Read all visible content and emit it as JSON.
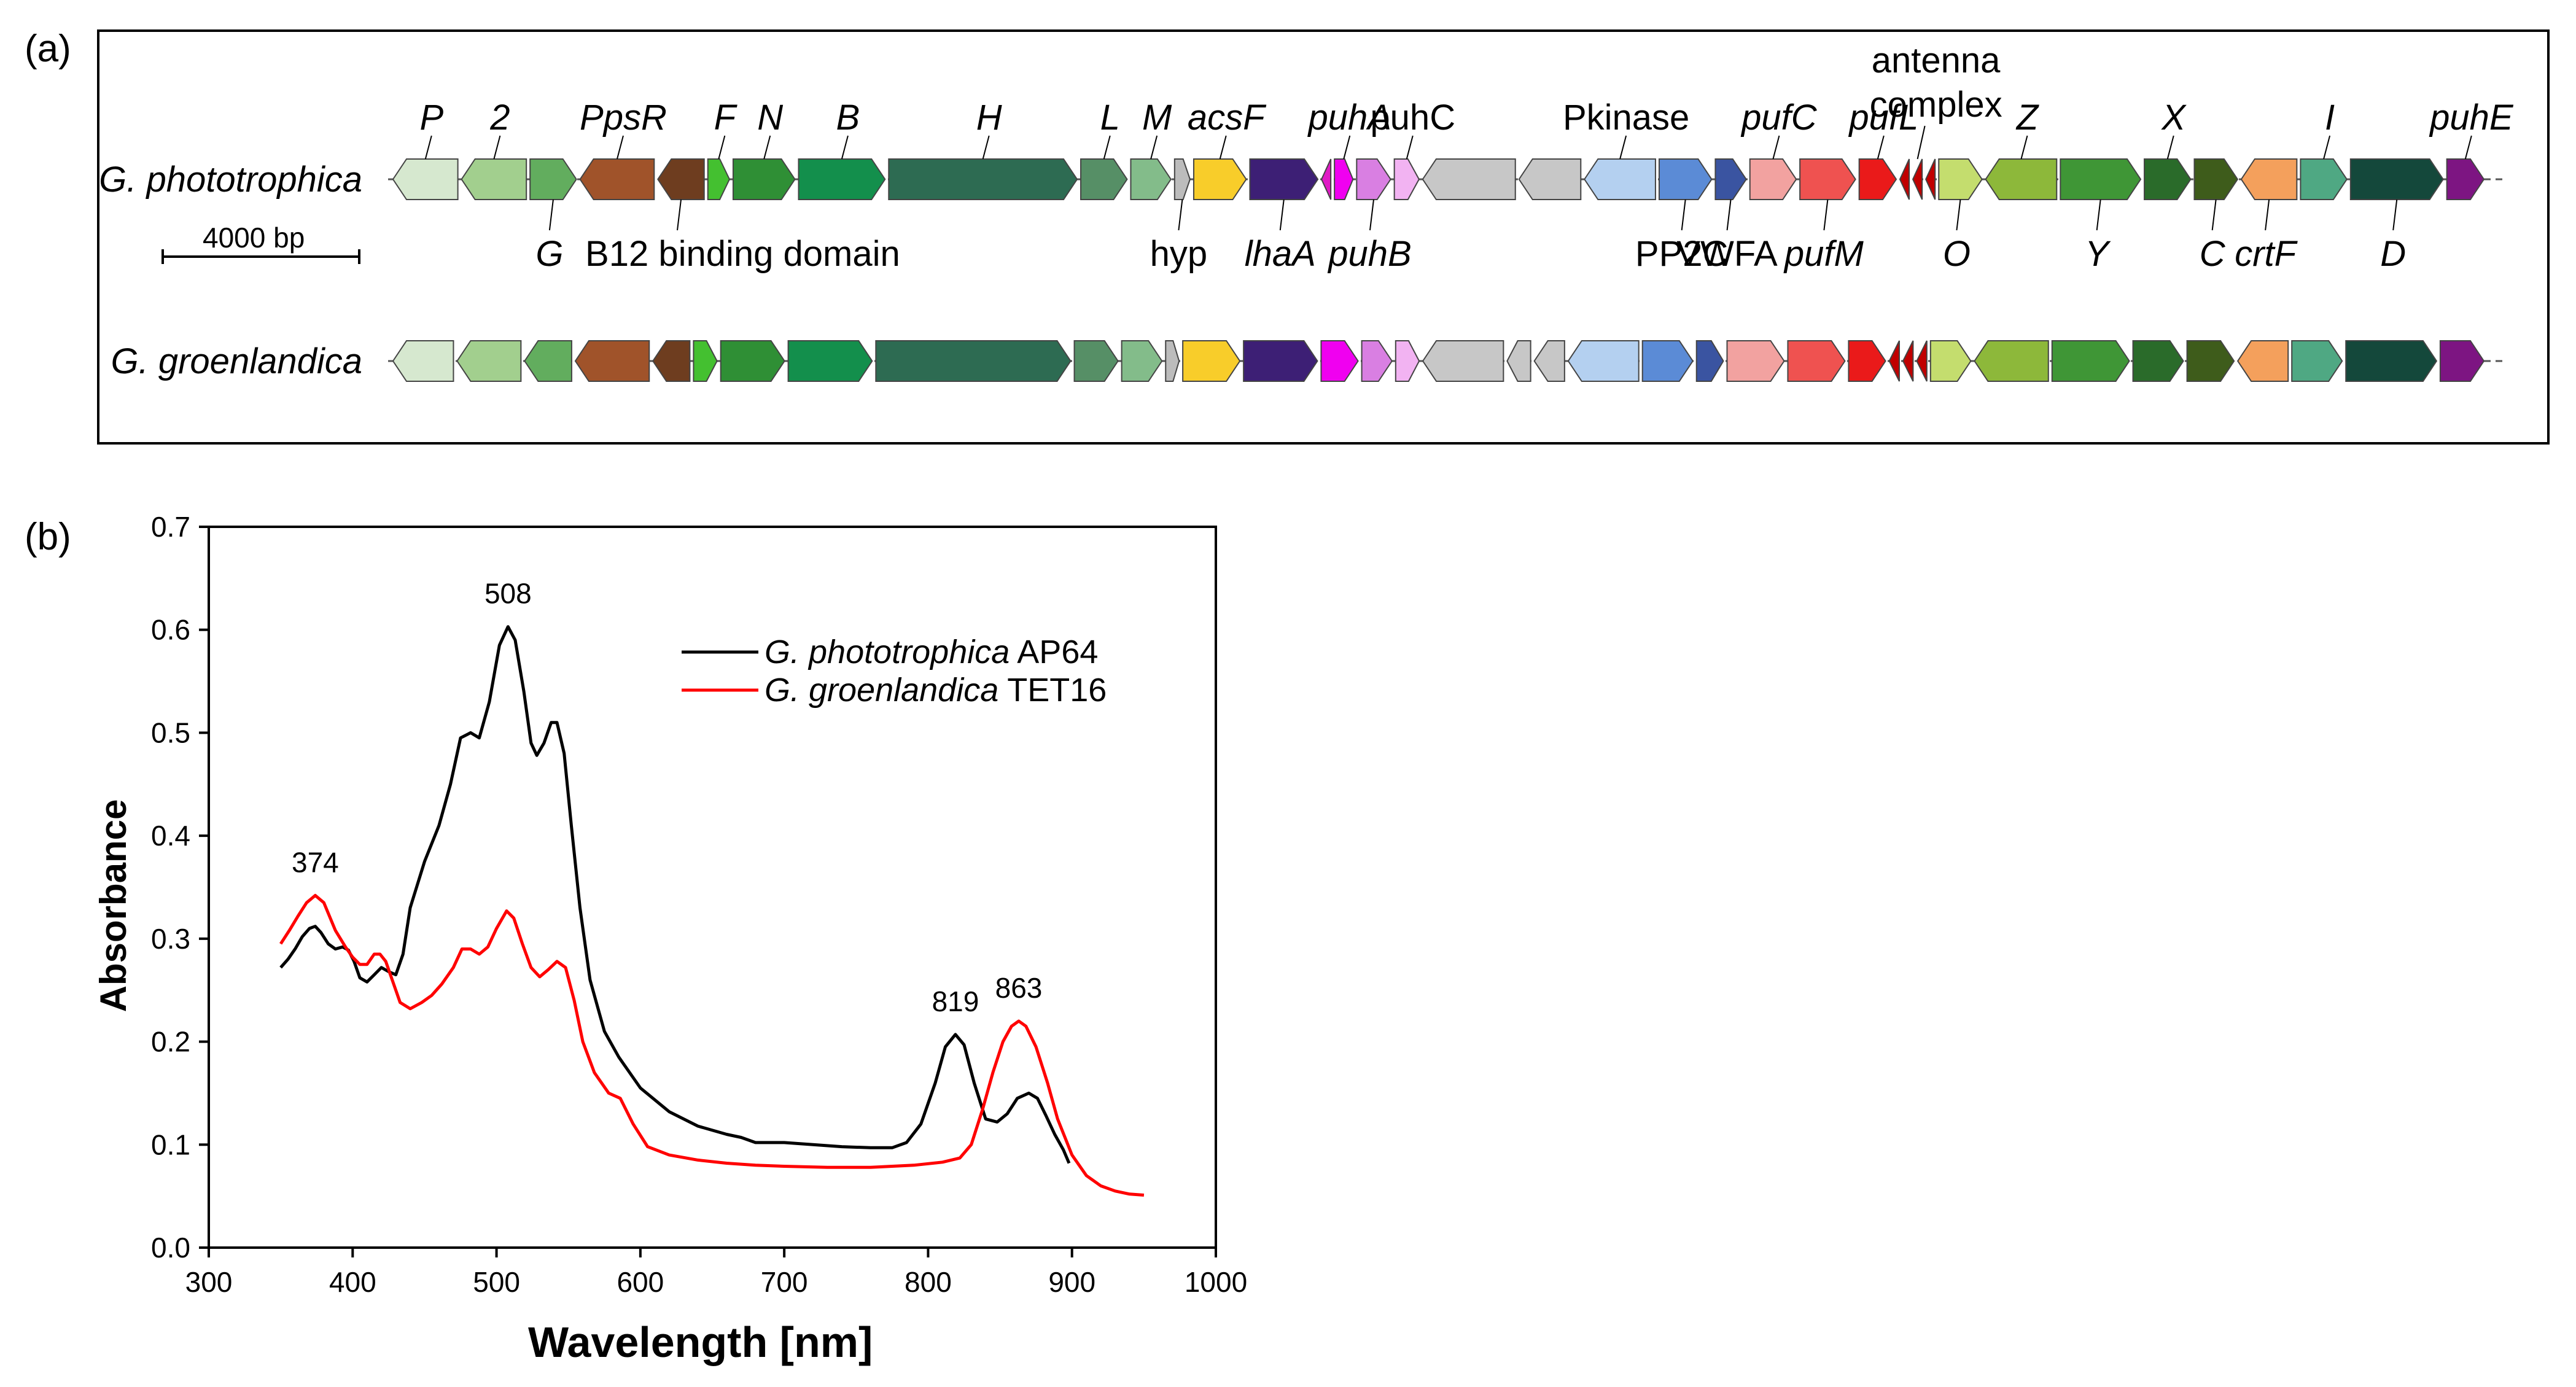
{
  "panel_a": {
    "label": "(a)",
    "scale_bar_label": "4000 bp",
    "rows": [
      {
        "species": "G. phototrophica",
        "genes": [
          {
            "w": 42,
            "dir": "l",
            "c": "#d6e8cf"
          },
          {
            "w": 42,
            "dir": "l",
            "c": "#a2cf8e"
          },
          {
            "w": 30,
            "dir": "r",
            "c": "#62ad5e"
          },
          {
            "w": 48,
            "dir": "l",
            "c": "#a0532a"
          },
          {
            "w": 30,
            "dir": "l",
            "c": "#6e3d1f"
          },
          {
            "w": 14,
            "dir": "r",
            "c": "#44c030"
          },
          {
            "w": 40,
            "dir": "r",
            "c": "#2f8f35"
          },
          {
            "w": 56,
            "dir": "r",
            "c": "#138f4c"
          },
          {
            "w": 122,
            "dir": "r",
            "c": "#2d6b52"
          },
          {
            "w": 30,
            "dir": "r",
            "c": "#568f66"
          },
          {
            "w": 26,
            "dir": "r",
            "c": "#83bc8a"
          },
          {
            "w": 10,
            "dir": "r",
            "c": "#bcbcbc"
          },
          {
            "w": 34,
            "dir": "r",
            "c": "#f8cd2a"
          },
          {
            "w": 44,
            "dir": "r",
            "c": "#3d1f75"
          },
          {
            "w": 6,
            "dir": "l",
            "c": "#e01ac5"
          },
          {
            "w": 12,
            "dir": "r",
            "c": "#f000f0"
          },
          {
            "w": 22,
            "dir": "r",
            "c": "#d97fe2"
          },
          {
            "w": 16,
            "dir": "r",
            "c": "#f2b3f2"
          },
          {
            "w": 60,
            "dir": "l",
            "c": "#c7c7c7"
          },
          {
            "w": 40,
            "dir": "l",
            "c": "#c7c7c7"
          },
          {
            "w": 46,
            "dir": "l",
            "c": "#b4d0f0"
          },
          {
            "w": 34,
            "dir": "r",
            "c": "#5b8bd6"
          },
          {
            "w": 20,
            "dir": "r",
            "c": "#3a54a1"
          },
          {
            "w": 30,
            "dir": "r",
            "c": "#f2a2a0"
          },
          {
            "w": 36,
            "dir": "r",
            "c": "#ef5250"
          },
          {
            "w": 24,
            "dir": "r",
            "c": "#ea1a1a"
          },
          {
            "w": 6,
            "dir": "l",
            "c": "#c00000"
          },
          {
            "w": 6,
            "dir": "l",
            "c": "#c00000"
          },
          {
            "w": 6,
            "dir": "l",
            "c": "#c00000"
          },
          {
            "w": 28,
            "dir": "r",
            "c": "#c4dd6e"
          },
          {
            "w": 46,
            "dir": "l",
            "c": "#8db83a"
          },
          {
            "w": 52,
            "dir": "r",
            "c": "#3f9636"
          },
          {
            "w": 30,
            "dir": "r",
            "c": "#2a6b2a"
          },
          {
            "w": 28,
            "dir": "r",
            "c": "#3e5c1b"
          },
          {
            "w": 36,
            "dir": "l",
            "c": "#f4a05c"
          },
          {
            "w": 30,
            "dir": "r",
            "c": "#4fa883"
          },
          {
            "w": 60,
            "dir": "r",
            "c": "#14483b"
          },
          {
            "w": 24,
            "dir": "r",
            "c": "#7d1582"
          }
        ]
      },
      {
        "species": "G. groenlandica",
        "genes": [
          {
            "w": 36,
            "dir": "l",
            "c": "#d6e8cf"
          },
          {
            "w": 38,
            "dir": "l",
            "c": "#a2cf8e"
          },
          {
            "w": 28,
            "dir": "l",
            "c": "#62ad5e"
          },
          {
            "w": 44,
            "dir": "l",
            "c": "#a0532a"
          },
          {
            "w": 22,
            "dir": "l",
            "c": "#6e3d1f"
          },
          {
            "w": 14,
            "dir": "r",
            "c": "#44c030"
          },
          {
            "w": 38,
            "dir": "r",
            "c": "#2f8f35"
          },
          {
            "w": 50,
            "dir": "r",
            "c": "#138f4c"
          },
          {
            "w": 116,
            "dir": "r",
            "c": "#2d6b52"
          },
          {
            "w": 26,
            "dir": "r",
            "c": "#568f66"
          },
          {
            "w": 24,
            "dir": "r",
            "c": "#83bc8a"
          },
          {
            "w": 8,
            "dir": "r",
            "c": "#bcbcbc"
          },
          {
            "w": 34,
            "dir": "r",
            "c": "#f8cd2a"
          },
          {
            "w": 44,
            "dir": "r",
            "c": "#3d1f75"
          },
          {
            "w": 22,
            "dir": "r",
            "c": "#f000f0"
          },
          {
            "w": 18,
            "dir": "r",
            "c": "#d97fe2"
          },
          {
            "w": 14,
            "dir": "r",
            "c": "#f2b3f2"
          },
          {
            "w": 48,
            "dir": "l",
            "c": "#c7c7c7"
          },
          {
            "w": 14,
            "dir": "l",
            "c": "#c7c7c7"
          },
          {
            "w": 18,
            "dir": "l",
            "c": "#c7c7c7"
          },
          {
            "w": 42,
            "dir": "l",
            "c": "#b4d0f0"
          },
          {
            "w": 30,
            "dir": "r",
            "c": "#5b8bd6"
          },
          {
            "w": 16,
            "dir": "r",
            "c": "#3a54a1"
          },
          {
            "w": 34,
            "dir": "r",
            "c": "#f2a2a0"
          },
          {
            "w": 34,
            "dir": "r",
            "c": "#ef5250"
          },
          {
            "w": 22,
            "dir": "r",
            "c": "#ea1a1a"
          },
          {
            "w": 6,
            "dir": "l",
            "c": "#c00000"
          },
          {
            "w": 6,
            "dir": "l",
            "c": "#c00000"
          },
          {
            "w": 6,
            "dir": "l",
            "c": "#c00000"
          },
          {
            "w": 24,
            "dir": "r",
            "c": "#c4dd6e"
          },
          {
            "w": 44,
            "dir": "l",
            "c": "#8db83a"
          },
          {
            "w": 46,
            "dir": "r",
            "c": "#3f9636"
          },
          {
            "w": 30,
            "dir": "r",
            "c": "#2a6b2a"
          },
          {
            "w": 28,
            "dir": "r",
            "c": "#3e5c1b"
          },
          {
            "w": 30,
            "dir": "l",
            "c": "#f4a05c"
          },
          {
            "w": 30,
            "dir": "r",
            "c": "#4fa883"
          },
          {
            "w": 54,
            "dir": "r",
            "c": "#14483b"
          },
          {
            "w": 26,
            "dir": "r",
            "c": "#7d1582"
          }
        ]
      }
    ],
    "top_gene_labels": [
      {
        "text": "P",
        "italic": true,
        "gene": 0
      },
      {
        "text": "2",
        "italic": true,
        "gene": 1
      },
      {
        "text": "PpsR",
        "italic": true,
        "gene": 3
      },
      {
        "text": "F",
        "italic": true,
        "gene": 5
      },
      {
        "text": "N",
        "italic": true,
        "gene": 6
      },
      {
        "text": "B",
        "italic": true,
        "gene": 7
      },
      {
        "text": "H",
        "italic": true,
        "gene": 8
      },
      {
        "text": "L",
        "italic": true,
        "gene": 9
      },
      {
        "text": "M",
        "italic": true,
        "gene": 10
      },
      {
        "text": "acsF",
        "italic": true,
        "gene": 12
      },
      {
        "text": "puhA",
        "italic": true,
        "gene": 15
      },
      {
        "text": "puhC",
        "italic": false,
        "gene": 17
      },
      {
        "text": "Pkinase",
        "italic": false,
        "gene": 20
      },
      {
        "text": "pufC",
        "italic": true,
        "gene": 23
      },
      {
        "text": "pufL",
        "italic": true,
        "gene": 25
      },
      {
        "text": "Z",
        "italic": true,
        "gene": 30
      },
      {
        "text": "X",
        "italic": true,
        "gene": 32
      },
      {
        "text": "I",
        "italic": true,
        "gene": 35
      },
      {
        "text": "puhE",
        "italic": true,
        "gene": 37
      }
    ],
    "antenna_label": [
      "antenna",
      "complex"
    ],
    "bottom_gene_labels": [
      {
        "text": "G",
        "italic": true,
        "gene": 2
      },
      {
        "text": "B12 binding domain",
        "italic": false,
        "gene": 4
      },
      {
        "text": "hyp",
        "italic": false,
        "gene": 11
      },
      {
        "text": "lhaA",
        "italic": true,
        "gene": 13
      },
      {
        "text": "puhB",
        "italic": true,
        "gene": 16
      },
      {
        "text": "PP2C",
        "italic": false,
        "gene": 21
      },
      {
        "text": "VWFA",
        "italic": false,
        "gene": 22
      },
      {
        "text": "pufM",
        "italic": true,
        "gene": 24
      },
      {
        "text": "O",
        "italic": true,
        "gene": 29
      },
      {
        "text": "Y",
        "italic": true,
        "gene": 31
      },
      {
        "text": "C",
        "italic": true,
        "gene": 33
      },
      {
        "text": "crtF",
        "italic": true,
        "gene": 34
      },
      {
        "text": "D",
        "italic": true,
        "gene": 36
      }
    ]
  },
  "chart_data": {
    "type": "line",
    "panel_label": "(b)",
    "xlabel": "Wavelength [nm]",
    "ylabel": "Absorbance",
    "xlim": [
      300,
      1000
    ],
    "ylim": [
      0.0,
      0.7
    ],
    "xticks": [
      300,
      400,
      500,
      600,
      700,
      800,
      900,
      1000
    ],
    "yticks": [
      0.0,
      0.1,
      0.2,
      0.3,
      0.4,
      0.5,
      0.6,
      0.7
    ],
    "ytick_labels": [
      "0.0",
      "0.1",
      "0.2",
      "0.3",
      "0.4",
      "0.5",
      "0.6",
      "0.7"
    ],
    "legend_position": "top-center",
    "series": [
      {
        "name_italic": "G. phototrophica",
        "name_suffix": " AP64",
        "color": "#000000",
        "points": [
          [
            350,
            0.272
          ],
          [
            355,
            0.28
          ],
          [
            360,
            0.29
          ],
          [
            365,
            0.302
          ],
          [
            370,
            0.31
          ],
          [
            374,
            0.312
          ],
          [
            378,
            0.306
          ],
          [
            383,
            0.295
          ],
          [
            388,
            0.29
          ],
          [
            393,
            0.292
          ],
          [
            397,
            0.289
          ],
          [
            401,
            0.278
          ],
          [
            405,
            0.262
          ],
          [
            410,
            0.258
          ],
          [
            415,
            0.265
          ],
          [
            420,
            0.272
          ],
          [
            425,
            0.268
          ],
          [
            430,
            0.265
          ],
          [
            435,
            0.285
          ],
          [
            440,
            0.33
          ],
          [
            450,
            0.375
          ],
          [
            460,
            0.41
          ],
          [
            468,
            0.45
          ],
          [
            475,
            0.495
          ],
          [
            482,
            0.5
          ],
          [
            488,
            0.495
          ],
          [
            495,
            0.53
          ],
          [
            502,
            0.585
          ],
          [
            508,
            0.603
          ],
          [
            513,
            0.59
          ],
          [
            519,
            0.54
          ],
          [
            524,
            0.49
          ],
          [
            528,
            0.478
          ],
          [
            533,
            0.49
          ],
          [
            538,
            0.51
          ],
          [
            542,
            0.51
          ],
          [
            547,
            0.48
          ],
          [
            552,
            0.41
          ],
          [
            558,
            0.33
          ],
          [
            565,
            0.26
          ],
          [
            575,
            0.21
          ],
          [
            585,
            0.185
          ],
          [
            600,
            0.155
          ],
          [
            620,
            0.132
          ],
          [
            640,
            0.118
          ],
          [
            660,
            0.11
          ],
          [
            670,
            0.107
          ],
          [
            680,
            0.102
          ],
          [
            700,
            0.102
          ],
          [
            720,
            0.1
          ],
          [
            740,
            0.098
          ],
          [
            760,
            0.097
          ],
          [
            775,
            0.097
          ],
          [
            785,
            0.102
          ],
          [
            795,
            0.12
          ],
          [
            805,
            0.16
          ],
          [
            812,
            0.195
          ],
          [
            819,
            0.207
          ],
          [
            825,
            0.197
          ],
          [
            832,
            0.16
          ],
          [
            840,
            0.125
          ],
          [
            848,
            0.122
          ],
          [
            855,
            0.13
          ],
          [
            862,
            0.145
          ],
          [
            870,
            0.15
          ],
          [
            876,
            0.145
          ],
          [
            882,
            0.128
          ],
          [
            888,
            0.11
          ],
          [
            894,
            0.095
          ],
          [
            898,
            0.082
          ]
        ]
      },
      {
        "name_italic": "G. groenlandica",
        "name_suffix": " TET16",
        "color": "#ff0000",
        "points": [
          [
            350,
            0.295
          ],
          [
            356,
            0.308
          ],
          [
            362,
            0.322
          ],
          [
            368,
            0.335
          ],
          [
            374,
            0.342
          ],
          [
            380,
            0.335
          ],
          [
            388,
            0.308
          ],
          [
            395,
            0.292
          ],
          [
            400,
            0.282
          ],
          [
            405,
            0.275
          ],
          [
            410,
            0.275
          ],
          [
            415,
            0.285
          ],
          [
            419,
            0.285
          ],
          [
            423,
            0.278
          ],
          [
            428,
            0.258
          ],
          [
            433,
            0.238
          ],
          [
            440,
            0.232
          ],
          [
            448,
            0.238
          ],
          [
            455,
            0.245
          ],
          [
            462,
            0.256
          ],
          [
            470,
            0.272
          ],
          [
            476,
            0.29
          ],
          [
            482,
            0.29
          ],
          [
            488,
            0.285
          ],
          [
            494,
            0.292
          ],
          [
            500,
            0.31
          ],
          [
            507,
            0.327
          ],
          [
            512,
            0.32
          ],
          [
            518,
            0.295
          ],
          [
            524,
            0.272
          ],
          [
            530,
            0.263
          ],
          [
            536,
            0.27
          ],
          [
            542,
            0.278
          ],
          [
            548,
            0.272
          ],
          [
            554,
            0.24
          ],
          [
            560,
            0.2
          ],
          [
            568,
            0.17
          ],
          [
            578,
            0.15
          ],
          [
            586,
            0.145
          ],
          [
            595,
            0.12
          ],
          [
            605,
            0.098
          ],
          [
            620,
            0.09
          ],
          [
            640,
            0.085
          ],
          [
            660,
            0.082
          ],
          [
            680,
            0.08
          ],
          [
            700,
            0.079
          ],
          [
            730,
            0.078
          ],
          [
            760,
            0.078
          ],
          [
            790,
            0.08
          ],
          [
            810,
            0.083
          ],
          [
            822,
            0.087
          ],
          [
            830,
            0.1
          ],
          [
            838,
            0.135
          ],
          [
            845,
            0.17
          ],
          [
            852,
            0.2
          ],
          [
            858,
            0.215
          ],
          [
            863,
            0.22
          ],
          [
            868,
            0.215
          ],
          [
            875,
            0.195
          ],
          [
            883,
            0.16
          ],
          [
            890,
            0.125
          ],
          [
            900,
            0.09
          ],
          [
            910,
            0.07
          ],
          [
            920,
            0.06
          ],
          [
            930,
            0.055
          ],
          [
            940,
            0.052
          ],
          [
            950,
            0.051
          ]
        ]
      }
    ],
    "annotations": [
      {
        "text": "374",
        "x": 374,
        "y": 0.342
      },
      {
        "text": "508",
        "x": 508,
        "y": 0.603
      },
      {
        "text": "819",
        "x": 819,
        "y": 0.207
      },
      {
        "text": "863",
        "x": 863,
        "y": 0.22
      }
    ]
  }
}
